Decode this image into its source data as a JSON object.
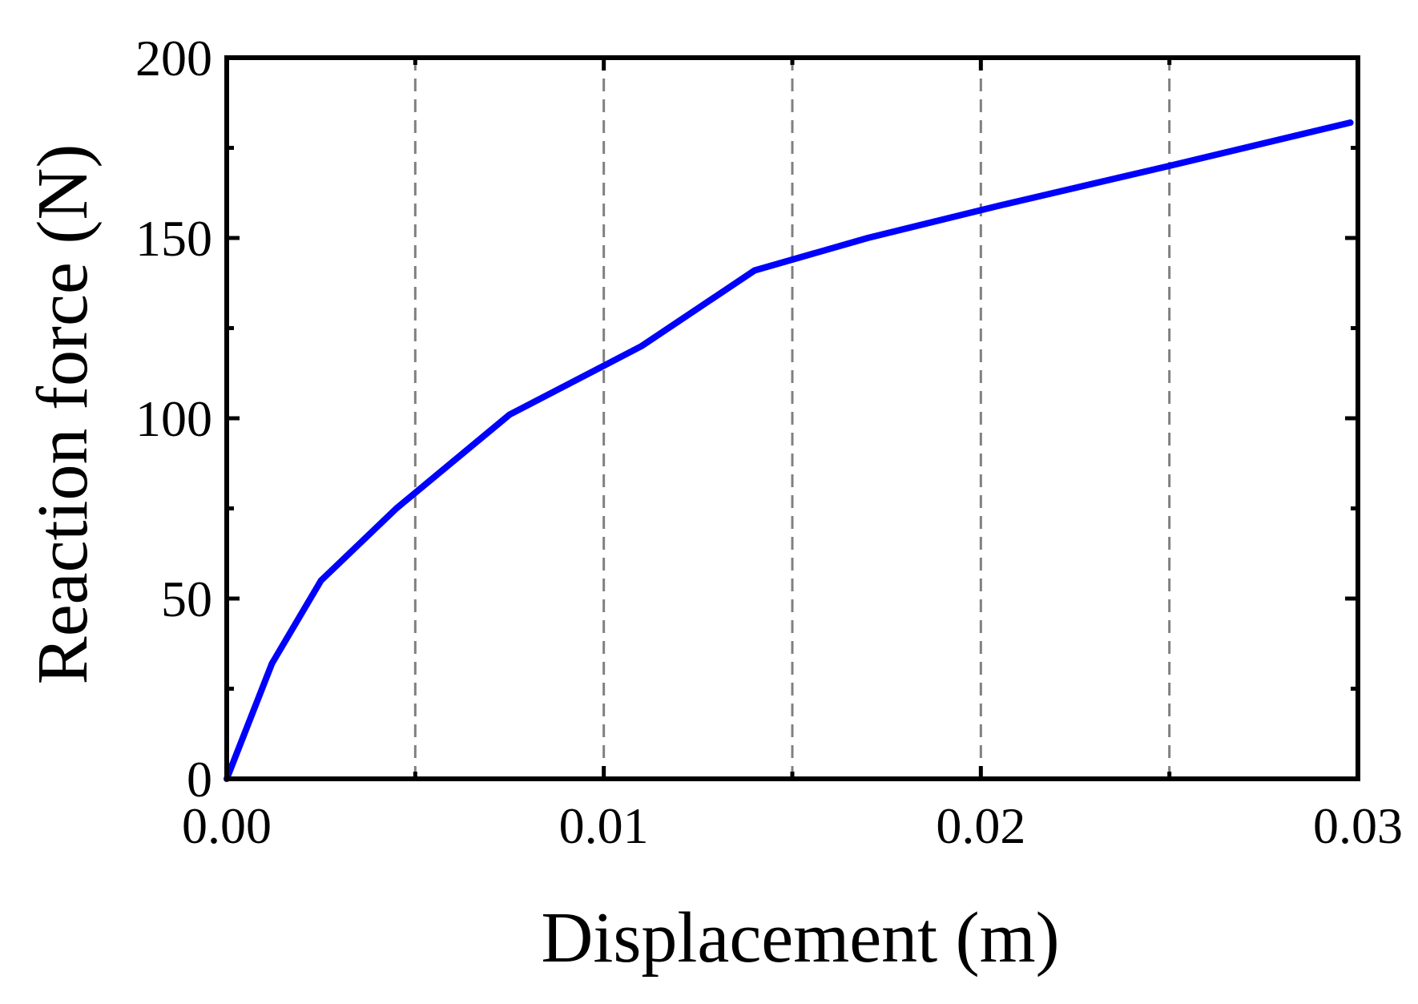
{
  "chart_data": {
    "type": "line",
    "title": "",
    "xlabel": "Displacement (m)",
    "ylabel": "Reaction force (N)",
    "xlim": [
      0,
      0.03
    ],
    "ylim": [
      0,
      200
    ],
    "x_ticks": [
      0.0,
      0.01,
      0.02,
      0.03
    ],
    "x_tick_labels": [
      "0.00",
      "0.01",
      "0.02",
      "0.03"
    ],
    "y_ticks": [
      0,
      50,
      100,
      150,
      200
    ],
    "y_tick_labels": [
      "0",
      "50",
      "100",
      "150",
      "200"
    ],
    "x_minor_ticks": [
      0.005,
      0.015,
      0.025
    ],
    "y_minor_ticks": [
      25,
      75,
      125,
      175
    ],
    "vertical_gridlines_at": [
      0.005,
      0.01,
      0.015,
      0.02,
      0.025
    ],
    "grid": "vertical dashed",
    "legend": "none",
    "series": [
      {
        "color": "#0000ff",
        "x": [
          0.0,
          0.0012,
          0.0025,
          0.0045,
          0.0075,
          0.011,
          0.014,
          0.017,
          0.0205,
          0.025,
          0.0298
        ],
        "y": [
          0,
          32,
          55,
          75,
          101,
          120,
          141,
          150,
          159,
          170,
          182
        ]
      }
    ]
  }
}
